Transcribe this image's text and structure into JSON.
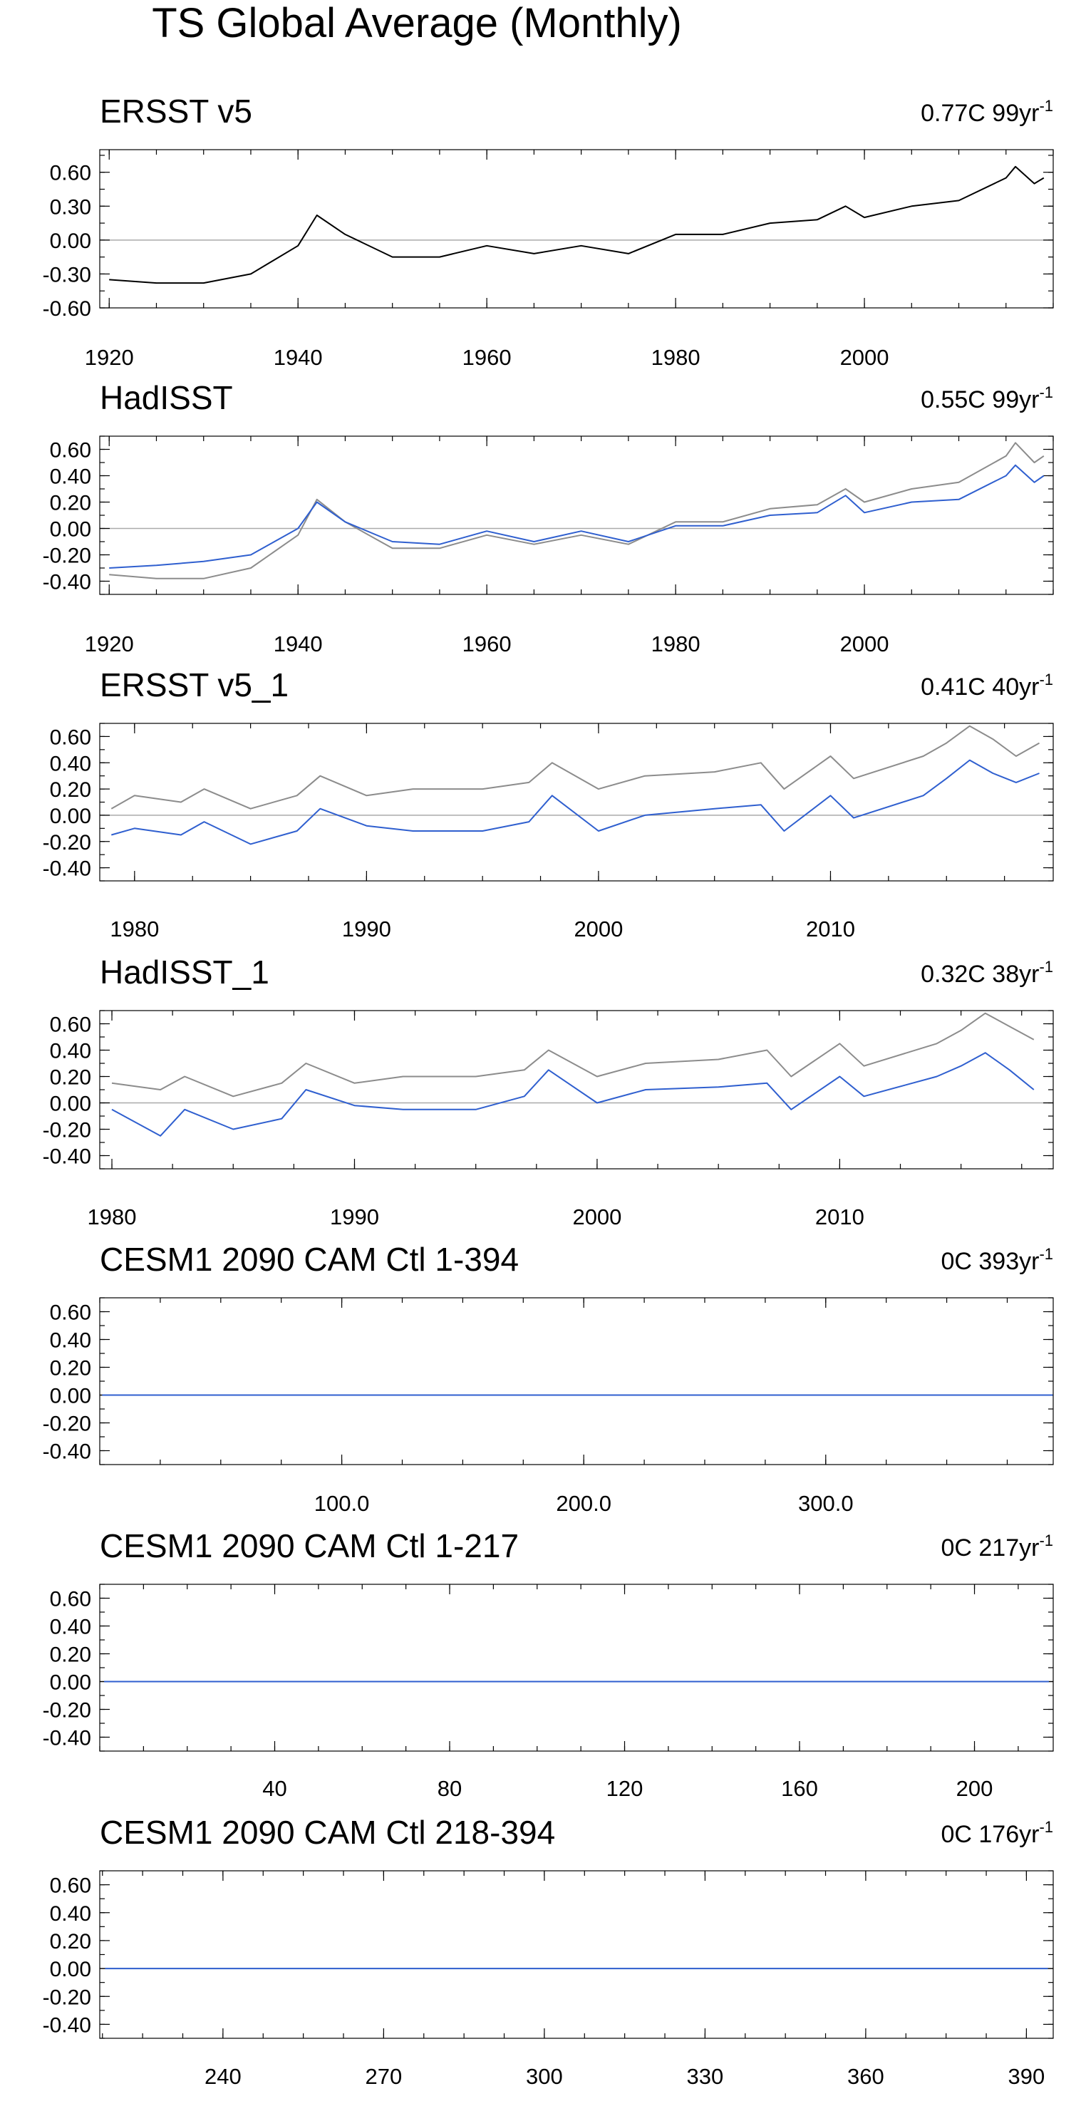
{
  "figure_title": "TS Global Average (Monthly)",
  "colors": {
    "obs": "#000000",
    "ref": "#8c8c8c",
    "model": "#2f5fcf",
    "zero_line": "#aaaaaa"
  },
  "chart_data": [
    {
      "type": "line",
      "title": "ERSST v5",
      "right_label": "0.77C 99yr",
      "right_label_sup": "-1",
      "xlim": [
        1919,
        2020
      ],
      "ylim": [
        -0.6,
        0.8
      ],
      "yticks": [
        -0.6,
        -0.3,
        0.0,
        0.3,
        0.6
      ],
      "ytick_labels": [
        "-0.60",
        "-0.30",
        "0.00",
        "0.30",
        "0.60"
      ],
      "xticks": [
        1920,
        1940,
        1960,
        1980,
        2000
      ],
      "xtick_labels": [
        "1920",
        "1940",
        "1960",
        "1980",
        "2000"
      ],
      "series": [
        {
          "name": "ERSST v5",
          "color_key": "obs",
          "x": [
            1920,
            1925,
            1930,
            1935,
            1940,
            1942,
            1945,
            1950,
            1955,
            1960,
            1965,
            1970,
            1975,
            1980,
            1985,
            1990,
            1995,
            1998,
            2000,
            2005,
            2010,
            2015,
            2016,
            2018,
            2019
          ],
          "y": [
            -0.35,
            -0.38,
            -0.38,
            -0.3,
            -0.05,
            0.22,
            0.05,
            -0.15,
            -0.15,
            -0.05,
            -0.12,
            -0.05,
            -0.12,
            0.05,
            0.05,
            0.15,
            0.18,
            0.3,
            0.2,
            0.3,
            0.35,
            0.55,
            0.65,
            0.5,
            0.55
          ]
        }
      ]
    },
    {
      "type": "line",
      "title": "HadISST",
      "right_label": "0.55C 99yr",
      "right_label_sup": "-1",
      "xlim": [
        1919,
        2020
      ],
      "ylim": [
        -0.5,
        0.7
      ],
      "yticks": [
        -0.4,
        -0.2,
        0.0,
        0.2,
        0.4,
        0.6
      ],
      "ytick_labels": [
        "-0.40",
        "-0.20",
        "0.00",
        "0.20",
        "0.40",
        "0.60"
      ],
      "xticks": [
        1920,
        1940,
        1960,
        1980,
        2000
      ],
      "xtick_labels": [
        "1920",
        "1940",
        "1960",
        "1980",
        "2000"
      ],
      "series": [
        {
          "name": "ERSST v5",
          "color_key": "ref",
          "x": [
            1920,
            1925,
            1930,
            1935,
            1940,
            1942,
            1945,
            1950,
            1955,
            1960,
            1965,
            1970,
            1975,
            1980,
            1985,
            1990,
            1995,
            1998,
            2000,
            2005,
            2010,
            2015,
            2016,
            2018,
            2019
          ],
          "y": [
            -0.35,
            -0.38,
            -0.38,
            -0.3,
            -0.05,
            0.22,
            0.05,
            -0.15,
            -0.15,
            -0.05,
            -0.12,
            -0.05,
            -0.12,
            0.05,
            0.05,
            0.15,
            0.18,
            0.3,
            0.2,
            0.3,
            0.35,
            0.55,
            0.65,
            0.5,
            0.55
          ]
        },
        {
          "name": "HadISST",
          "color_key": "model",
          "x": [
            1920,
            1925,
            1930,
            1935,
            1940,
            1942,
            1945,
            1950,
            1955,
            1960,
            1965,
            1970,
            1975,
            1980,
            1985,
            1990,
            1995,
            1998,
            2000,
            2005,
            2010,
            2015,
            2016,
            2018,
            2019
          ],
          "y": [
            -0.3,
            -0.28,
            -0.25,
            -0.2,
            0.0,
            0.2,
            0.05,
            -0.1,
            -0.12,
            -0.02,
            -0.1,
            -0.02,
            -0.1,
            0.02,
            0.02,
            0.1,
            0.12,
            0.25,
            0.12,
            0.2,
            0.22,
            0.4,
            0.48,
            0.35,
            0.4
          ]
        }
      ]
    },
    {
      "type": "line",
      "title": "ERSST v5_1",
      "right_label": "0.41C 40yr",
      "right_label_sup": "-1",
      "xlim": [
        1978.5,
        2019.6
      ],
      "ylim": [
        -0.5,
        0.7
      ],
      "yticks": [
        -0.4,
        -0.2,
        0.0,
        0.2,
        0.4,
        0.6
      ],
      "ytick_labels": [
        "-0.40",
        "-0.20",
        "0.00",
        "0.20",
        "0.40",
        "0.60"
      ],
      "xticks": [
        1980,
        1990,
        2000,
        2010
      ],
      "xtick_labels": [
        "1980",
        "1990",
        "2000",
        "2010"
      ],
      "series": [
        {
          "name": "ERSST v5",
          "color_key": "ref",
          "x": [
            1979,
            1980,
            1982,
            1983,
            1985,
            1987,
            1988,
            1990,
            1992,
            1995,
            1997,
            1998,
            2000,
            2002,
            2005,
            2007,
            2008,
            2010,
            2011,
            2014,
            2015,
            2016,
            2017,
            2018,
            2019
          ],
          "y": [
            0.05,
            0.15,
            0.1,
            0.2,
            0.05,
            0.15,
            0.3,
            0.15,
            0.2,
            0.2,
            0.25,
            0.4,
            0.2,
            0.3,
            0.33,
            0.4,
            0.2,
            0.45,
            0.28,
            0.45,
            0.55,
            0.68,
            0.58,
            0.45,
            0.55
          ]
        },
        {
          "name": "ERSST v5_1",
          "color_key": "model",
          "x": [
            1979,
            1980,
            1982,
            1983,
            1985,
            1987,
            1988,
            1990,
            1992,
            1995,
            1997,
            1998,
            2000,
            2002,
            2005,
            2007,
            2008,
            2010,
            2011,
            2014,
            2015,
            2016,
            2017,
            2018,
            2019
          ],
          "y": [
            -0.15,
            -0.1,
            -0.15,
            -0.05,
            -0.22,
            -0.12,
            0.05,
            -0.08,
            -0.12,
            -0.12,
            -0.05,
            0.15,
            -0.12,
            0.0,
            0.05,
            0.08,
            -0.12,
            0.15,
            -0.02,
            0.15,
            0.28,
            0.42,
            0.32,
            0.25,
            0.32
          ]
        }
      ]
    },
    {
      "type": "line",
      "title": "HadISST_1",
      "right_label": "0.32C 38yr",
      "right_label_sup": "-1",
      "xlim": [
        1979.5,
        2018.8
      ],
      "ylim": [
        -0.5,
        0.7
      ],
      "yticks": [
        -0.4,
        -0.2,
        0.0,
        0.2,
        0.4,
        0.6
      ],
      "ytick_labels": [
        "-0.40",
        "-0.20",
        "0.00",
        "0.20",
        "0.40",
        "0.60"
      ],
      "xticks": [
        1980,
        1990,
        2000,
        2010
      ],
      "xtick_labels": [
        "1980",
        "1990",
        "2000",
        "2010"
      ],
      "series": [
        {
          "name": "ERSST v5",
          "color_key": "ref",
          "x": [
            1980,
            1982,
            1983,
            1985,
            1987,
            1988,
            1990,
            1992,
            1995,
            1997,
            1998,
            2000,
            2002,
            2005,
            2007,
            2008,
            2010,
            2011,
            2014,
            2015,
            2016,
            2017,
            2018
          ],
          "y": [
            0.15,
            0.1,
            0.2,
            0.05,
            0.15,
            0.3,
            0.15,
            0.2,
            0.2,
            0.25,
            0.4,
            0.2,
            0.3,
            0.33,
            0.4,
            0.2,
            0.45,
            0.28,
            0.45,
            0.55,
            0.68,
            0.58,
            0.48
          ]
        },
        {
          "name": "HadISST_1",
          "color_key": "model",
          "x": [
            1980,
            1982,
            1983,
            1985,
            1987,
            1988,
            1990,
            1992,
            1995,
            1997,
            1998,
            2000,
            2002,
            2005,
            2007,
            2008,
            2010,
            2011,
            2014,
            2015,
            2016,
            2017,
            2018
          ],
          "y": [
            -0.05,
            -0.25,
            -0.05,
            -0.2,
            -0.12,
            0.1,
            -0.02,
            -0.05,
            -0.05,
            0.05,
            0.25,
            0.0,
            0.1,
            0.12,
            0.15,
            -0.05,
            0.2,
            0.05,
            0.2,
            0.28,
            0.38,
            0.25,
            0.1
          ]
        }
      ]
    },
    {
      "type": "line",
      "title": "CESM1 2090 CAM Ctl 1-394",
      "right_label": "0C 393yr",
      "right_label_sup": "-1",
      "xlim": [
        0,
        394
      ],
      "ylim": [
        -0.5,
        0.7
      ],
      "yticks": [
        -0.4,
        -0.2,
        0.0,
        0.2,
        0.4,
        0.6
      ],
      "ytick_labels": [
        "-0.40",
        "-0.20",
        "0.00",
        "0.20",
        "0.40",
        "0.60"
      ],
      "xticks": [
        100,
        200,
        300
      ],
      "xtick_labels": [
        "100.0",
        "200.0",
        "300.0"
      ],
      "series": [
        {
          "name": "CESM1 2090 CAM Ctl",
          "color_key": "model",
          "x": [
            1,
            394
          ],
          "y": [
            0.0,
            0.0
          ]
        }
      ]
    },
    {
      "type": "line",
      "title": "CESM1 2090 CAM Ctl 1-217",
      "right_label": "0C 217yr",
      "right_label_sup": "-1",
      "xlim": [
        0,
        218
      ],
      "ylim": [
        -0.5,
        0.7
      ],
      "yticks": [
        -0.4,
        -0.2,
        0.0,
        0.2,
        0.4,
        0.6
      ],
      "ytick_labels": [
        "-0.40",
        "-0.20",
        "0.00",
        "0.20",
        "0.40",
        "0.60"
      ],
      "xticks": [
        40,
        80,
        120,
        160,
        200
      ],
      "xtick_labels": [
        "40",
        "80",
        "120",
        "160",
        "200"
      ],
      "series": [
        {
          "name": "CESM1 2090 CAM Ctl",
          "color_key": "model",
          "x": [
            1,
            217
          ],
          "y": [
            0.0,
            0.0
          ]
        }
      ]
    },
    {
      "type": "line",
      "title": "CESM1 2090 CAM Ctl 218-394",
      "right_label": "0C 176yr",
      "right_label_sup": "-1",
      "xlim": [
        217,
        395
      ],
      "ylim": [
        -0.5,
        0.7
      ],
      "yticks": [
        -0.4,
        -0.2,
        0.0,
        0.2,
        0.4,
        0.6
      ],
      "ytick_labels": [
        "-0.40",
        "-0.20",
        "0.00",
        "0.20",
        "0.40",
        "0.60"
      ],
      "xticks": [
        240,
        270,
        300,
        330,
        360,
        390
      ],
      "xtick_labels": [
        "240",
        "270",
        "300",
        "330",
        "360",
        "390"
      ],
      "series": [
        {
          "name": "CESM1 2090 CAM Ctl",
          "color_key": "model",
          "x": [
            218,
            394
          ],
          "y": [
            0.0,
            0.0
          ]
        }
      ]
    }
  ]
}
